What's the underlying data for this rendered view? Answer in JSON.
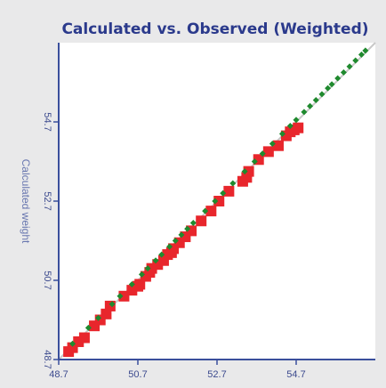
{
  "chart_data": {
    "type": "scatter",
    "title": "Calculated vs. Observed (Weighted)",
    "xlabel": "",
    "ylabel": "Calculated weight",
    "xlim": [
      48.7,
      56.7
    ],
    "ylim": [
      48.7,
      56.7
    ],
    "xticks": [
      "48.7",
      "50.7",
      "52.7",
      "54.7"
    ],
    "yticks": [
      "48.7",
      "50.7",
      "52.7",
      "54.7"
    ],
    "xtick_values": [
      48.7,
      50.7,
      52.7,
      54.7
    ],
    "ytick_values": [
      48.7,
      50.7,
      52.7,
      54.7
    ],
    "grid": false,
    "reference_line": {
      "color": "#c8c8c8"
    },
    "series": [
      {
        "marker": "square",
        "color": "#e8262c",
        "points": [
          [
            48.95,
            48.9
          ],
          [
            49.05,
            49.0
          ],
          [
            49.2,
            49.15
          ],
          [
            49.35,
            49.25
          ],
          [
            49.6,
            49.55
          ],
          [
            49.75,
            49.7
          ],
          [
            49.9,
            49.85
          ],
          [
            50.0,
            50.05
          ],
          [
            50.35,
            50.3
          ],
          [
            50.55,
            50.45
          ],
          [
            50.7,
            50.55
          ],
          [
            50.75,
            50.6
          ],
          [
            50.9,
            50.8
          ],
          [
            51.0,
            50.9
          ],
          [
            51.05,
            51.0
          ],
          [
            51.2,
            51.1
          ],
          [
            51.35,
            51.2
          ],
          [
            51.45,
            51.35
          ],
          [
            51.55,
            51.4
          ],
          [
            51.6,
            51.5
          ],
          [
            51.75,
            51.65
          ],
          [
            51.9,
            51.8
          ],
          [
            52.05,
            51.95
          ],
          [
            52.3,
            52.2
          ],
          [
            52.55,
            52.45
          ],
          [
            52.75,
            52.7
          ],
          [
            53.0,
            52.95
          ],
          [
            53.35,
            53.2
          ],
          [
            53.45,
            53.3
          ],
          [
            53.5,
            53.45
          ],
          [
            53.75,
            53.75
          ],
          [
            54.0,
            53.95
          ],
          [
            54.25,
            54.1
          ],
          [
            54.45,
            54.35
          ],
          [
            54.55,
            54.45
          ],
          [
            54.65,
            54.5
          ],
          [
            54.75,
            54.55
          ]
        ]
      },
      {
        "marker": "diamond",
        "color": "#1f8a2e",
        "points": [
          [
            49.05,
            49.1
          ],
          [
            49.45,
            49.5
          ],
          [
            49.7,
            49.75
          ],
          [
            50.05,
            50.1
          ],
          [
            50.25,
            50.3
          ],
          [
            50.55,
            50.6
          ],
          [
            50.8,
            50.85
          ],
          [
            50.95,
            51.0
          ],
          [
            51.15,
            51.2
          ],
          [
            51.3,
            51.35
          ],
          [
            51.5,
            51.55
          ],
          [
            51.65,
            51.7
          ],
          [
            51.8,
            51.85
          ],
          [
            51.95,
            52.0
          ],
          [
            52.1,
            52.15
          ],
          [
            52.4,
            52.45
          ],
          [
            52.65,
            52.7
          ],
          [
            52.85,
            52.9
          ],
          [
            53.1,
            53.15
          ],
          [
            53.4,
            53.45
          ],
          [
            53.65,
            53.7
          ],
          [
            53.85,
            53.9
          ],
          [
            54.1,
            54.15
          ],
          [
            54.35,
            54.4
          ],
          [
            54.55,
            54.6
          ],
          [
            54.7,
            54.75
          ],
          [
            54.9,
            54.95
          ],
          [
            55.05,
            55.1
          ],
          [
            55.2,
            55.25
          ],
          [
            55.35,
            55.4
          ],
          [
            55.5,
            55.55
          ],
          [
            55.6,
            55.65
          ],
          [
            55.75,
            55.8
          ],
          [
            55.9,
            55.95
          ],
          [
            56.05,
            56.1
          ],
          [
            56.2,
            56.25
          ],
          [
            56.35,
            56.4
          ],
          [
            56.45,
            56.5
          ]
        ]
      }
    ]
  }
}
